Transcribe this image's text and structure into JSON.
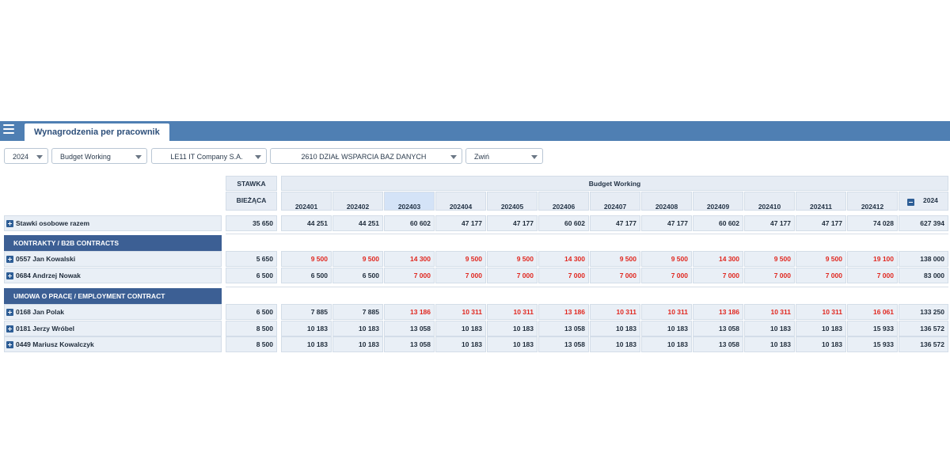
{
  "tab": {
    "title": "Wynagrodzenia per pracownik"
  },
  "filters": {
    "year": "2024",
    "scenario": "Budget Working",
    "company": "LE11 IT Company S.A.",
    "department": "2610 DZIAŁ WSPARCIA BAZ DANYCH",
    "view": "Zwiń"
  },
  "table": {
    "stawka_header": "STAWKA",
    "biezaca_header": "BIEŻĄCA",
    "budget_header": "Budget Working",
    "months": [
      "202401",
      "202402",
      "202403",
      "202404",
      "202405",
      "202406",
      "202407",
      "202408",
      "202409",
      "202410",
      "202411",
      "202412"
    ],
    "year_total": "2024",
    "summary": {
      "label": "Stawki osobowe razem",
      "stawka": "35 650",
      "values": [
        "44 251",
        "44 251",
        "60 602",
        "47 177",
        "47 177",
        "60 602",
        "47 177",
        "47 177",
        "60 602",
        "47 177",
        "47 177",
        "74 028"
      ],
      "total": "627 394"
    },
    "sections": [
      {
        "title": "KONTRAKTY / B2B CONTRACTS",
        "rows": [
          {
            "label": "0557 Jan Kowalski",
            "stawka": "5 650",
            "values": [
              "9 500",
              "9 500",
              "14 300",
              "9 500",
              "9 500",
              "14 300",
              "9 500",
              "9 500",
              "14 300",
              "9 500",
              "9 500",
              "19 100"
            ],
            "red": [
              true,
              true,
              true,
              true,
              true,
              true,
              true,
              true,
              true,
              true,
              true,
              true
            ],
            "total": "138 000"
          },
          {
            "label": "0684 Andrzej Nowak",
            "stawka": "6 500",
            "values": [
              "6 500",
              "6 500",
              "7 000",
              "7 000",
              "7 000",
              "7 000",
              "7 000",
              "7 000",
              "7 000",
              "7 000",
              "7 000",
              "7 000"
            ],
            "red": [
              false,
              false,
              true,
              true,
              true,
              true,
              true,
              true,
              true,
              true,
              true,
              true
            ],
            "total": "83 000"
          }
        ]
      },
      {
        "title": "UMOWA O PRACĘ / EMPLOYMENT CONTRACT",
        "rows": [
          {
            "label": "0168 Jan Polak",
            "stawka": "6 500",
            "values": [
              "7 885",
              "7 885",
              "13 186",
              "10 311",
              "10 311",
              "13 186",
              "10 311",
              "10 311",
              "13 186",
              "10 311",
              "10 311",
              "16 061"
            ],
            "red": [
              false,
              false,
              true,
              true,
              true,
              true,
              true,
              true,
              true,
              true,
              true,
              true
            ],
            "total": "133 250"
          },
          {
            "label": "0181 Jerzy Wróbel",
            "stawka": "8 500",
            "values": [
              "10 183",
              "10 183",
              "13 058",
              "10 183",
              "10 183",
              "13 058",
              "10 183",
              "10 183",
              "13 058",
              "10 183",
              "10 183",
              "15 933"
            ],
            "red": [
              false,
              false,
              false,
              false,
              false,
              false,
              false,
              false,
              false,
              false,
              false,
              false
            ],
            "total": "136 572"
          },
          {
            "label": "0449 Mariusz Kowalczyk",
            "stawka": "8 500",
            "values": [
              "10 183",
              "10 183",
              "13 058",
              "10 183",
              "10 183",
              "13 058",
              "10 183",
              "10 183",
              "13 058",
              "10 183",
              "10 183",
              "15 933"
            ],
            "red": [
              false,
              false,
              false,
              false,
              false,
              false,
              false,
              false,
              false,
              false,
              false,
              false
            ],
            "total": "136 572"
          }
        ]
      }
    ]
  },
  "colors": {
    "header_bar": "#4f7fb3",
    "section_bar": "#3c5f94",
    "negative_value": "#e0271f",
    "highlighted_month": "#d4e3f7"
  }
}
